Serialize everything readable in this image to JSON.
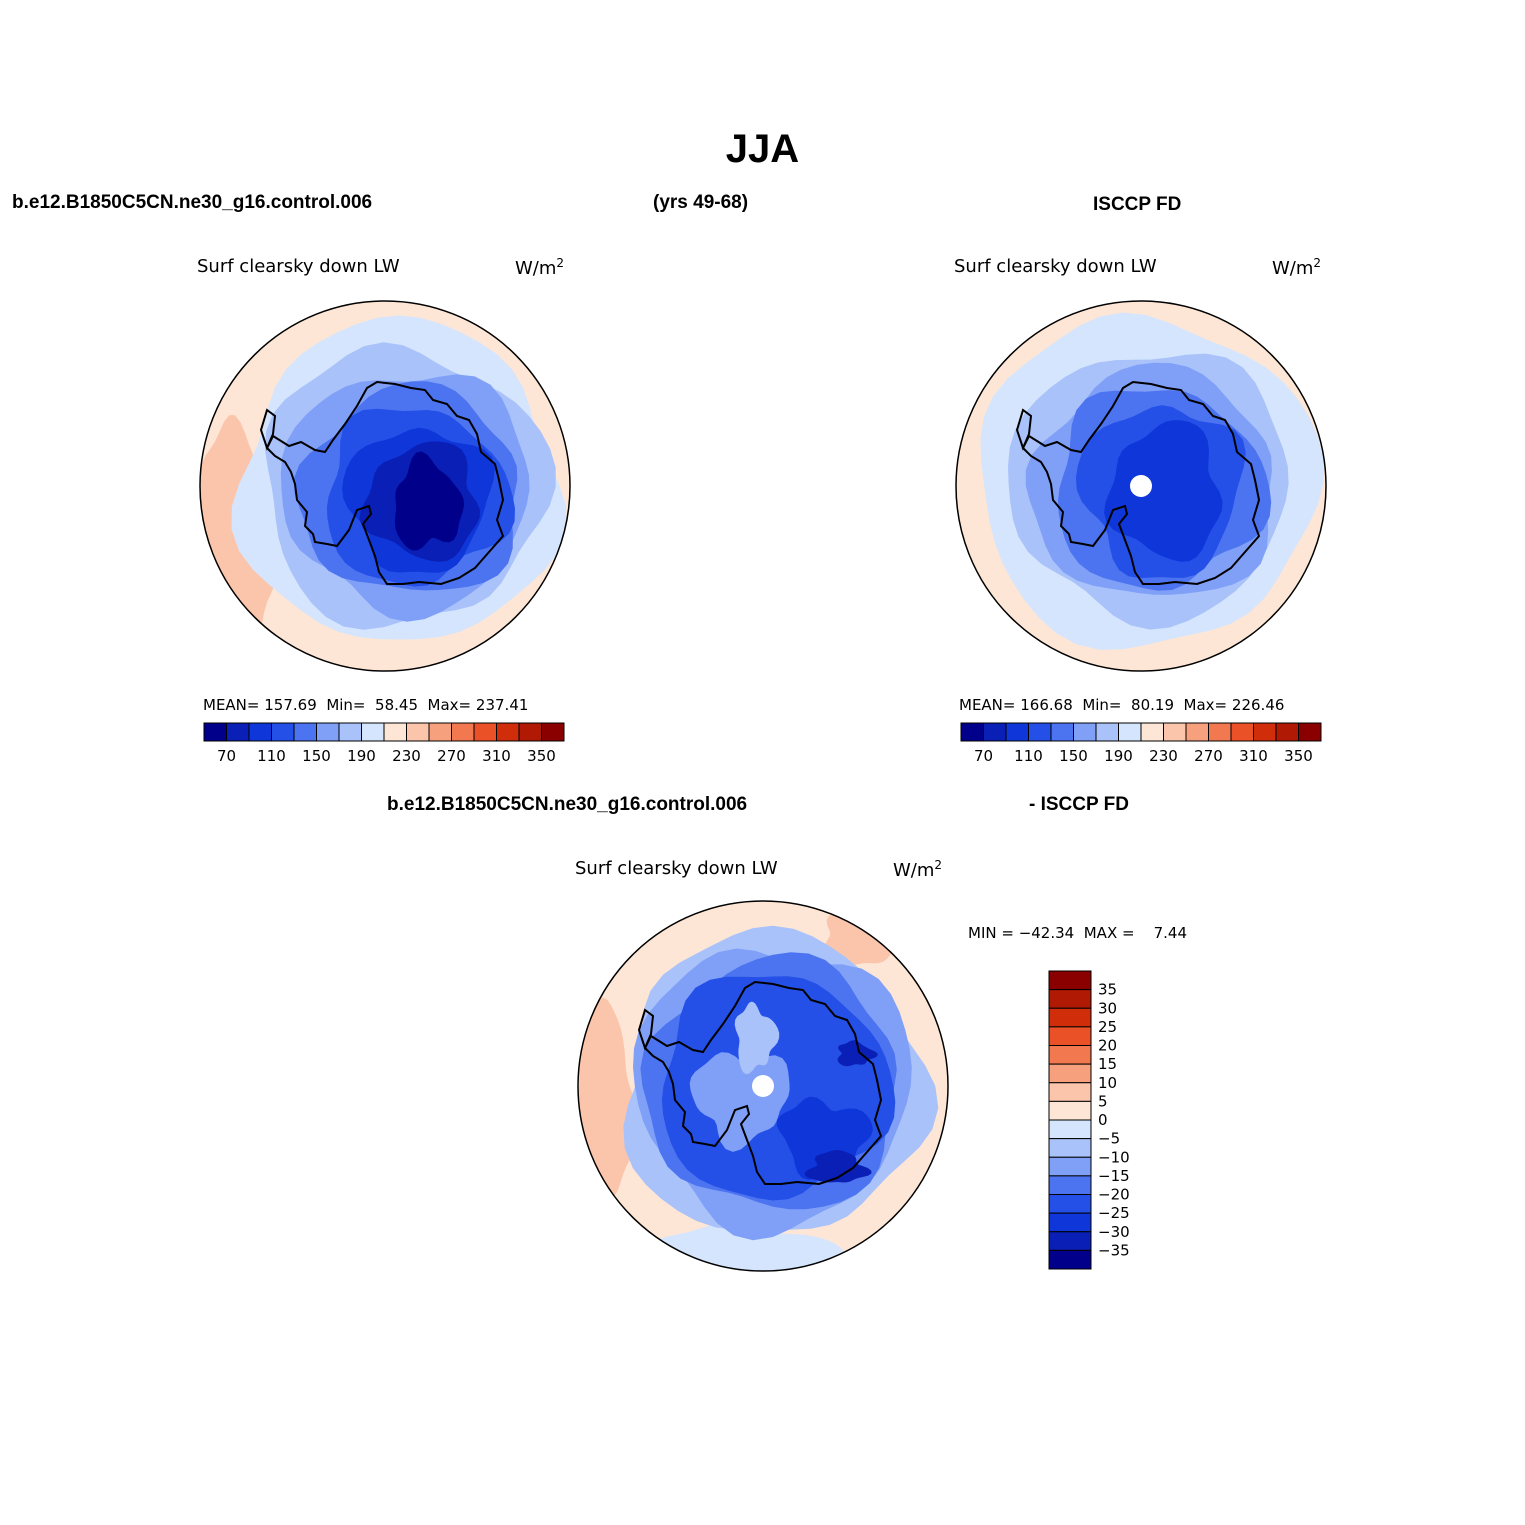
{
  "figure": {
    "title": "JJA",
    "case_name": "b.e12.B1850C5CN.ne30_g16.control.006",
    "years": "(yrs 49-68)",
    "obs_name": "ISCCP FD",
    "diff_case_name": "b.e12.B1850C5CN.ne30_g16.control.006",
    "diff_obs_name": "- ISCCP FD"
  },
  "panels": [
    {
      "id": "model",
      "variable": "Surf clearsky down LW",
      "units": "W/m",
      "units_sup": "2",
      "stats": {
        "mean_label": "MEAN=",
        "mean": "157.69",
        "min_label": "Min=",
        "min": "58.45",
        "max_label": "Max=",
        "max": "237.41"
      }
    },
    {
      "id": "obs",
      "variable": "Surf clearsky down LW",
      "units": "W/m",
      "units_sup": "2",
      "stats": {
        "mean_label": "MEAN=",
        "mean": "166.68",
        "min_label": "Min=",
        "min": "80.19",
        "max_label": "Max=",
        "max": "226.46"
      }
    },
    {
      "id": "diff",
      "variable": "Surf clearsky down LW",
      "units": "W/m",
      "units_sup": "2",
      "stats_text": "MIN = −42.34  MAX =    7.44"
    }
  ],
  "abs_colorbar": {
    "colors": [
      "#00008b",
      "#0a1fb5",
      "#0f36d9",
      "#2450e8",
      "#4d74f0",
      "#80a0f7",
      "#a9c2fa",
      "#d4e5fd",
      "#fde6d6",
      "#fbc5ac",
      "#f6a07e",
      "#f27850",
      "#ea5127",
      "#d02d0a",
      "#b01a04",
      "#8a0000"
    ],
    "tick_labels": [
      "70",
      "110",
      "150",
      "190",
      "230",
      "270",
      "310",
      "350"
    ]
  },
  "diff_colorbar": {
    "colors": [
      "#00008b",
      "#0a1fb5",
      "#0f36d9",
      "#2450e8",
      "#4d74f0",
      "#80a0f7",
      "#a9c2fa",
      "#d4e5fd",
      "#fde6d6",
      "#fbc5ac",
      "#f6a07e",
      "#f27850",
      "#ea5127",
      "#d02d0a",
      "#b01a04",
      "#8a0000"
    ],
    "tick_labels": [
      "35",
      "30",
      "25",
      "20",
      "15",
      "10",
      "5",
      "0",
      "−5",
      "−10",
      "−15",
      "−20",
      "−25",
      "−30",
      "−35"
    ]
  },
  "map_colors": {
    "ocean_far": "#fde6d6",
    "ocean_warm": "#fbc5ac",
    "lvl1": "#d4e5fd",
    "lvl2": "#a9c2fa",
    "lvl3": "#80a0f7",
    "lvl4": "#4d74f0",
    "lvl5": "#2450e8",
    "lvl6": "#0f36d9",
    "lvl7": "#0a1fb5",
    "lvl8": "#00008b",
    "coast": "#000000",
    "pole_mask": "#ffffff"
  }
}
